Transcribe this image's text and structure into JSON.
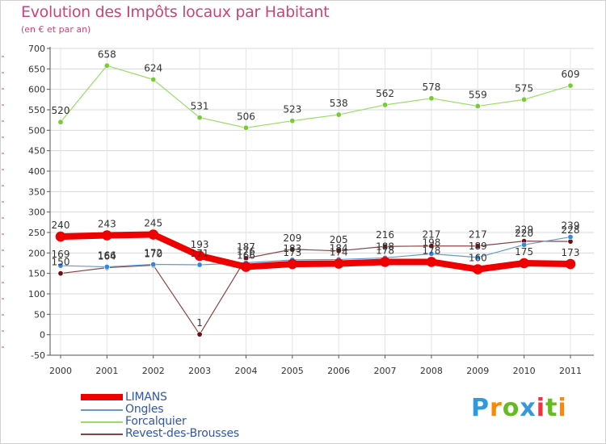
{
  "header": {
    "title": "Evolution des Impôts locaux par Habitant",
    "subtitle": "(en € et par an)"
  },
  "logo": {
    "letters": [
      "P",
      "r",
      "o",
      "x",
      "i",
      "t",
      "i"
    ],
    "colors": [
      "#3399dd",
      "#ff8800",
      "#66bb22",
      "#3399dd",
      "#ee3344",
      "#66bb22",
      "#ff8800"
    ]
  },
  "chart_data": {
    "type": "line",
    "title": "Evolution des Impôts locaux par Habitant",
    "subtitle": "(en € et par an)",
    "xlabel": "",
    "ylabel": "",
    "x": [
      "2000",
      "2001",
      "2002",
      "2003",
      "2004",
      "2005",
      "2006",
      "2007",
      "2008",
      "2009",
      "2010",
      "2011"
    ],
    "ylim": [
      -50,
      700
    ],
    "yticks": [
      "-50",
      "0",
      "50",
      "100",
      "150",
      "200",
      "250",
      "300",
      "350",
      "400",
      "450",
      "500",
      "550",
      "600",
      "650",
      "700"
    ],
    "grid": true,
    "legend_position": "bottom-left",
    "series": [
      {
        "name": "Forcalquier",
        "color": "#99dd66",
        "marker": "#77cc33",
        "width": 1.2,
        "values": [
          520,
          658,
          624,
          531,
          506,
          523,
          538,
          562,
          578,
          559,
          575,
          609
        ],
        "labels": [
          "520",
          "658",
          "624",
          "531",
          "506",
          "523",
          "538",
          "562",
          "578",
          "559",
          "575",
          "609"
        ]
      },
      {
        "name": "Revest-des-Brousses",
        "color": "#884444",
        "marker": "#661111",
        "width": 1.2,
        "values": [
          150,
          164,
          170,
          1,
          187,
          209,
          205,
          216,
          217,
          217,
          229,
          228
        ],
        "labels": [
          "150",
          "164",
          "170",
          "1",
          "187",
          "209",
          "205",
          "216",
          "217",
          "217",
          "229",
          "228"
        ]
      },
      {
        "name": "Ongles",
        "color": "#6699cc",
        "marker": "#3388dd",
        "width": 1.2,
        "values": [
          169,
          166,
          172,
          171,
          176,
          183,
          184,
          188,
          198,
          189,
          220,
          239
        ],
        "labels": [
          "169",
          "166",
          "172",
          "171",
          "176",
          "183",
          "184",
          "188",
          "198",
          "189",
          "220",
          "239"
        ]
      },
      {
        "name": "LIMANS",
        "color": "#ee0000",
        "marker": "#ee0000",
        "width": 8,
        "values": [
          240,
          243,
          245,
          193,
          166,
          173,
          174,
          178,
          178,
          160,
          175,
          173
        ],
        "labels": [
          "240",
          "243",
          "245",
          "193",
          "166",
          "173",
          "174",
          "178",
          "178",
          "160",
          "175",
          "173"
        ]
      }
    ],
    "legend": [
      "LIMANS",
      "Ongles",
      "Forcalquier",
      "Revest-des-Brousses"
    ]
  }
}
